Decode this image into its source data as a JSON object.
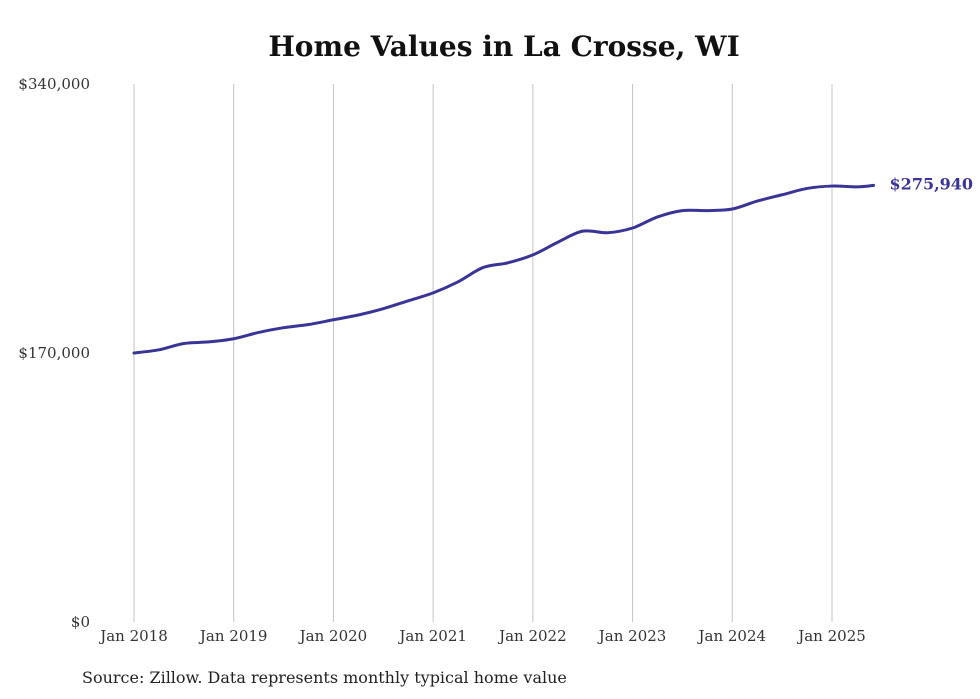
{
  "chart_data": {
    "type": "line",
    "title": "Home Values in La Crosse, WI",
    "xlabel": "",
    "ylabel": "",
    "source": "Source: Zillow. Data represents monthly typical home value",
    "ylim": [
      0,
      340000
    ],
    "yticks": [
      {
        "value": 0,
        "label": "$0"
      },
      {
        "value": 170000,
        "label": "$170,000"
      },
      {
        "value": 340000,
        "label": "$340,000"
      }
    ],
    "xticks": [
      {
        "value": "2018-01",
        "label": "Jan 2018"
      },
      {
        "value": "2019-01",
        "label": "Jan 2019"
      },
      {
        "value": "2020-01",
        "label": "Jan 2020"
      },
      {
        "value": "2021-01",
        "label": "Jan 2021"
      },
      {
        "value": "2022-01",
        "label": "Jan 2022"
      },
      {
        "value": "2023-01",
        "label": "Jan 2023"
      },
      {
        "value": "2024-01",
        "label": "Jan 2024"
      },
      {
        "value": "2025-01",
        "label": "Jan 2025"
      }
    ],
    "grid": "vertical",
    "series": [
      {
        "color": "#3b3497",
        "end_label": "$275,940",
        "points": [
          [
            "2018-01",
            170000
          ],
          [
            "2018-04",
            172000
          ],
          [
            "2018-07",
            176000
          ],
          [
            "2018-10",
            177000
          ],
          [
            "2019-01",
            179000
          ],
          [
            "2019-04",
            183000
          ],
          [
            "2019-07",
            186000
          ],
          [
            "2019-10",
            188000
          ],
          [
            "2020-01",
            191000
          ],
          [
            "2020-04",
            194000
          ],
          [
            "2020-07",
            198000
          ],
          [
            "2020-10",
            203000
          ],
          [
            "2021-01",
            208000
          ],
          [
            "2021-04",
            215000
          ],
          [
            "2021-07",
            224000
          ],
          [
            "2021-10",
            227000
          ],
          [
            "2022-01",
            232000
          ],
          [
            "2022-04",
            240000
          ],
          [
            "2022-07",
            247000
          ],
          [
            "2022-10",
            246000
          ],
          [
            "2023-01",
            249000
          ],
          [
            "2023-04",
            256000
          ],
          [
            "2023-07",
            260000
          ],
          [
            "2023-10",
            260000
          ],
          [
            "2024-01",
            261000
          ],
          [
            "2024-04",
            266000
          ],
          [
            "2024-07",
            270000
          ],
          [
            "2024-10",
            274000
          ],
          [
            "2025-01",
            275500
          ],
          [
            "2025-04",
            275000
          ],
          [
            "2025-06",
            275940
          ]
        ]
      }
    ]
  }
}
